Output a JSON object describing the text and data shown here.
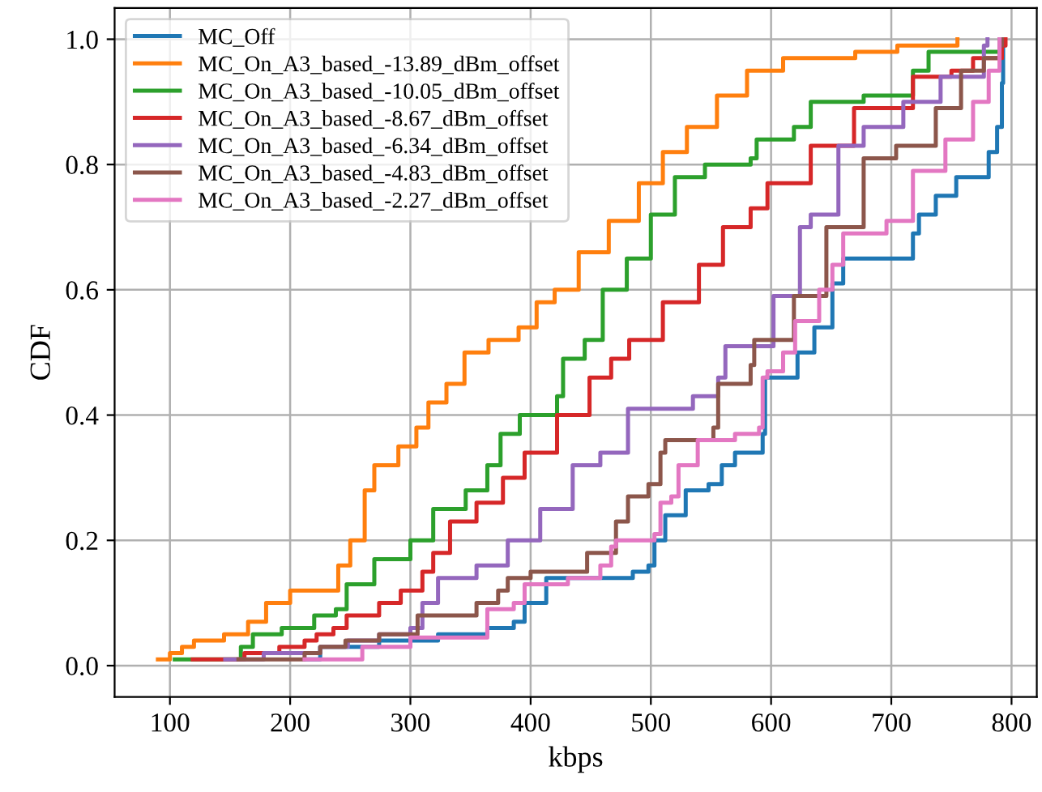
{
  "chart_data": {
    "type": "step",
    "xlabel": "kbps",
    "ylabel": "CDF",
    "xlim": [
      54,
      821
    ],
    "xticks": [
      100,
      200,
      300,
      400,
      500,
      600,
      700,
      800
    ],
    "ylim": [
      -0.05,
      1.05
    ],
    "yticks": [
      {
        "value": 0,
        "label": "0.0"
      },
      {
        "value": 0.2,
        "label": "0.2"
      },
      {
        "value": 0.4,
        "label": "0.4"
      },
      {
        "value": 0.6,
        "label": "0.6"
      },
      {
        "value": 0.8,
        "label": "0.8"
      },
      {
        "value": 1,
        "label": "1.0"
      }
    ],
    "grid": true,
    "legend": "top left",
    "marker": "none",
    "line_style": "solid",
    "series": [
      {
        "name": "MC_Off",
        "color": "#1f77b4",
        "x": [
          212,
          225,
          274,
          323,
          364,
          386,
          395,
          413,
          485,
          498,
          503,
          512,
          529,
          548,
          559,
          570,
          593,
          595,
          622,
          636,
          651,
          660,
          718,
          723,
          737,
          754,
          781,
          788,
          792,
          793,
          794
        ],
        "values": [
          0.01,
          0.03,
          0.04,
          0.05,
          0.06,
          0.07,
          0.1,
          0.14,
          0.15,
          0.16,
          0.2,
          0.24,
          0.28,
          0.29,
          0.32,
          0.34,
          0.37,
          0.46,
          0.5,
          0.54,
          0.61,
          0.65,
          0.69,
          0.72,
          0.75,
          0.78,
          0.82,
          0.86,
          0.93,
          0.99,
          1.0
        ]
      },
      {
        "name": "MC_On_A3_based_-13.89_dBm_offset",
        "color": "#ff7f0e",
        "x": [
          90,
          100,
          110,
          120,
          145,
          165,
          180,
          200,
          240,
          250,
          262,
          270,
          290,
          305,
          315,
          330,
          345,
          365,
          390,
          405,
          420,
          440,
          465,
          490,
          510,
          530,
          555,
          580,
          610,
          670,
          705,
          755
        ],
        "values": [
          0.01,
          0.02,
          0.03,
          0.04,
          0.05,
          0.07,
          0.1,
          0.12,
          0.16,
          0.2,
          0.28,
          0.32,
          0.35,
          0.38,
          0.42,
          0.45,
          0.5,
          0.52,
          0.54,
          0.58,
          0.6,
          0.66,
          0.71,
          0.77,
          0.82,
          0.86,
          0.91,
          0.95,
          0.97,
          0.98,
          0.99,
          1.0
        ]
      },
      {
        "name": "MC_On_A3_based_-10.05_dBm_offset",
        "color": "#2ca02c",
        "x": [
          104,
          159,
          169,
          193,
          220,
          238,
          247,
          270,
          300,
          319,
          346,
          364,
          375,
          391,
          422,
          427,
          445,
          460,
          480,
          500,
          520,
          545,
          583,
          588,
          619,
          633,
          677,
          718,
          731,
          790
        ],
        "values": [
          0.01,
          0.03,
          0.05,
          0.06,
          0.08,
          0.09,
          0.13,
          0.17,
          0.2,
          0.25,
          0.28,
          0.32,
          0.37,
          0.4,
          0.43,
          0.49,
          0.52,
          0.6,
          0.65,
          0.72,
          0.78,
          0.8,
          0.81,
          0.84,
          0.86,
          0.9,
          0.91,
          0.95,
          0.98,
          1.0
        ]
      },
      {
        "name": "MC_On_A3_based_-8.67_dBm_offset",
        "color": "#d62728",
        "x": [
          119,
          162,
          191,
          212,
          222,
          236,
          247,
          274,
          292,
          310,
          319,
          333,
          355,
          377,
          395,
          422,
          449,
          467,
          482,
          510,
          540,
          560,
          583,
          597,
          633,
          669,
          718,
          750,
          768,
          792,
          795
        ],
        "values": [
          0.01,
          0.02,
          0.03,
          0.04,
          0.05,
          0.06,
          0.08,
          0.1,
          0.12,
          0.15,
          0.18,
          0.23,
          0.26,
          0.3,
          0.34,
          0.4,
          0.46,
          0.49,
          0.52,
          0.58,
          0.64,
          0.7,
          0.73,
          0.77,
          0.83,
          0.89,
          0.94,
          0.95,
          0.97,
          0.99,
          1.0
        ]
      },
      {
        "name": "MC_On_A3_based_-6.34_dBm_offset",
        "color": "#9467bd",
        "x": [
          146,
          178,
          225,
          248,
          274,
          300,
          310,
          323,
          355,
          381,
          408,
          435,
          458,
          481,
          535,
          556,
          562,
          602,
          624,
          633,
          656,
          677,
          710,
          741,
          777,
          780
        ],
        "values": [
          0.01,
          0.02,
          0.03,
          0.04,
          0.05,
          0.06,
          0.1,
          0.14,
          0.16,
          0.2,
          0.25,
          0.32,
          0.34,
          0.41,
          0.43,
          0.46,
          0.51,
          0.59,
          0.7,
          0.72,
          0.83,
          0.86,
          0.9,
          0.94,
          0.99,
          1.0
        ]
      },
      {
        "name": "MC_On_A3_based_-4.83_dBm_offset",
        "color": "#8c564b",
        "x": [
          157,
          212,
          225,
          246,
          274,
          306,
          355,
          373,
          381,
          400,
          447,
          471,
          481,
          498,
          508,
          512,
          552,
          556,
          583,
          586,
          619,
          646,
          677,
          704,
          737,
          758,
          777,
          790,
          792
        ],
        "values": [
          0.01,
          0.02,
          0.03,
          0.04,
          0.05,
          0.08,
          0.1,
          0.12,
          0.14,
          0.15,
          0.18,
          0.23,
          0.27,
          0.29,
          0.34,
          0.36,
          0.38,
          0.45,
          0.48,
          0.52,
          0.59,
          0.7,
          0.81,
          0.83,
          0.89,
          0.95,
          0.97,
          0.99,
          1.0
        ]
      },
      {
        "name": "MC_On_A3_based_-2.27_dBm_offset",
        "color": "#e377c2",
        "x": [
          212,
          260,
          300,
          364,
          386,
          395,
          431,
          458,
          467,
          471,
          503,
          508,
          517,
          523,
          539,
          570,
          590,
          593,
          597,
          610,
          620,
          640,
          651,
          660,
          696,
          718,
          745,
          768,
          781,
          790
        ],
        "values": [
          0.01,
          0.03,
          0.045,
          0.09,
          0.1,
          0.13,
          0.14,
          0.16,
          0.19,
          0.2,
          0.21,
          0.26,
          0.27,
          0.32,
          0.36,
          0.37,
          0.38,
          0.46,
          0.47,
          0.5,
          0.55,
          0.6,
          0.64,
          0.69,
          0.71,
          0.79,
          0.84,
          0.9,
          0.95,
          1.0
        ]
      }
    ]
  }
}
